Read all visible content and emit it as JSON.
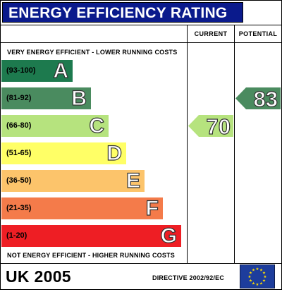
{
  "title": "ENERGY EFFICIENCY RATING",
  "columns": {
    "current": "CURRENT",
    "potential": "POTENTIAL"
  },
  "captions": {
    "top": "VERY ENERGY EFFICIENT - LOWER RUNNING COSTS",
    "bottom": "NOT ENERGY EFFICIENT - HIGHER RUNNING COSTS"
  },
  "bands": [
    {
      "range": "(93-100)",
      "letter": "A",
      "color": "#1d7a4e"
    },
    {
      "range": "(81-92)",
      "letter": "B",
      "color": "#4a8b5f"
    },
    {
      "range": "(66-80)",
      "letter": "C",
      "color": "#b6e37e"
    },
    {
      "range": "(51-65)",
      "letter": "D",
      "color": "#ffff66"
    },
    {
      "range": "(36-50)",
      "letter": "E",
      "color": "#fcc46b"
    },
    {
      "range": "(21-35)",
      "letter": "F",
      "color": "#f47b4a"
    },
    {
      "range": "(1-20)",
      "letter": "G",
      "color": "#ee1e24"
    }
  ],
  "current": {
    "value": "70",
    "color": "#b6e37e"
  },
  "potential": {
    "value": "83",
    "color": "#4a8b5f"
  },
  "footer": {
    "region": "UK 2005",
    "directive": "DIRECTIVE 2002/92/EC"
  },
  "flag": {
    "background": "#1d3d9c",
    "stars": "#ffdd00"
  }
}
